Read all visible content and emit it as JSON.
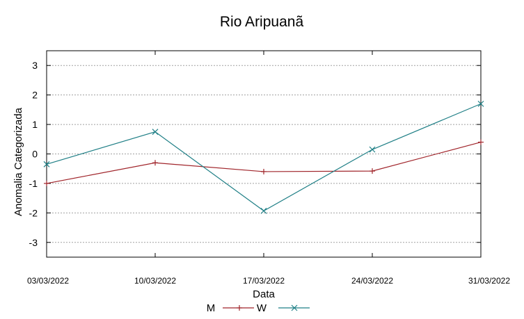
{
  "chart_data": {
    "type": "line",
    "title": "Rio Aripuanã",
    "xlabel": "Data",
    "ylabel": "Anomalia Categorizada",
    "categories": [
      "03/03/2022",
      "10/03/2022",
      "17/03/2022",
      "24/03/2022",
      "31/03/2022"
    ],
    "ylim": [
      -3.5,
      3.5
    ],
    "yticks": [
      -3,
      -2,
      -1,
      0,
      1,
      2,
      3
    ],
    "grid": true,
    "legend_position": "bottom",
    "series": [
      {
        "name": "M",
        "color": "#a0242a",
        "marker": "plus",
        "values": [
          -1.0,
          -0.3,
          -0.6,
          -0.58,
          0.4
        ]
      },
      {
        "name": "W",
        "color": "#1f7f86",
        "marker": "cross",
        "values": [
          -0.35,
          0.75,
          -1.93,
          0.15,
          1.7
        ]
      }
    ]
  }
}
